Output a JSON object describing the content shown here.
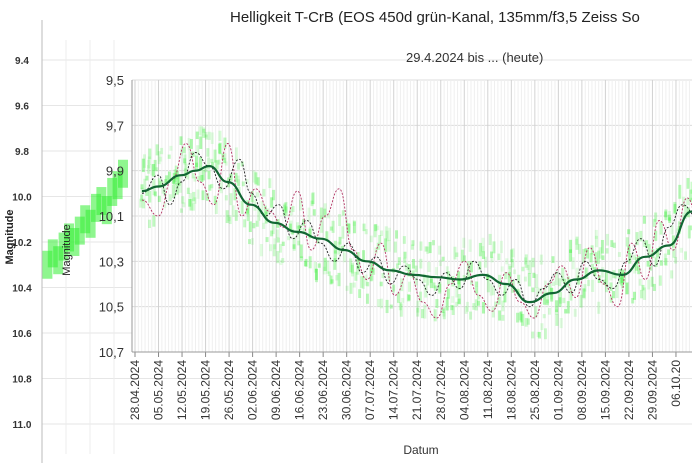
{
  "chart_data": [
    {
      "type": "scatter",
      "title": "",
      "ylabel": "Magnitude",
      "ylim": [
        9.3,
        11.1
      ],
      "y_inverted": true,
      "yticks": [
        "9.4",
        "9.6",
        "9.8",
        "10.0",
        "10.2",
        "10.4",
        "10.6",
        "10.8",
        "11.0"
      ],
      "grid": true,
      "series": [
        {
          "color": "#33ee33",
          "values": [
            [
              0.02,
              10.3
            ],
            [
              0.04,
              10.25
            ],
            [
              0.06,
              10.28
            ],
            [
              0.08,
              10.22
            ],
            [
              0.1,
              10.18
            ],
            [
              0.12,
              10.2
            ],
            [
              0.14,
              10.15
            ],
            [
              0.16,
              10.1
            ],
            [
              0.18,
              10.12
            ],
            [
              0.2,
              10.05
            ],
            [
              0.22,
              10.02
            ],
            [
              0.24,
              10.06
            ],
            [
              0.26,
              9.98
            ],
            [
              0.28,
              9.95
            ],
            [
              0.3,
              9.9
            ]
          ]
        }
      ]
    },
    {
      "type": "line",
      "title": "Helligkeit T-CrB (EOS 450d grün-Kanal, 135mm/f3,5 Zeiss So",
      "subtitle": "29.4.2024 bis ... (heute)",
      "xlabel": "Datum",
      "ylabel": "Magnitude",
      "ylim": [
        9.5,
        10.7
      ],
      "y_inverted": true,
      "yticks": [
        "9,5",
        "9,7",
        "9,9",
        "10,1",
        "10,3",
        "10,5",
        "10,7"
      ],
      "xticks": [
        "28.04.2024",
        "05.05.2024",
        "12.05.2024",
        "19.05.2024",
        "26.05.2024",
        "02.06.2024",
        "09.06.2024",
        "16.06.2024",
        "23.06.2024",
        "30.06.2024",
        "07.07.2024",
        "14.07.2024",
        "21.07.2024",
        "28.07.2024",
        "04.08.2024",
        "11.08.2024",
        "18.08.2024",
        "25.08.2024",
        "01.09.2024",
        "08.09.2024",
        "15.09.2024",
        "22.09.2024",
        "29.09.2024",
        "06.10.20"
      ],
      "grid": true,
      "series": [
        {
          "color": "#116633",
          "values": [
            [
              0.3,
              9.99
            ],
            [
              1,
              9.97
            ],
            [
              2,
              9.92
            ],
            [
              2.6,
              9.9
            ],
            [
              3.2,
              9.88
            ],
            [
              4,
              9.95
            ],
            [
              5,
              10.05
            ],
            [
              6,
              10.13
            ],
            [
              7,
              10.17
            ],
            [
              8,
              10.2
            ],
            [
              9,
              10.25
            ],
            [
              10,
              10.3
            ],
            [
              11,
              10.34
            ],
            [
              12,
              10.36
            ],
            [
              13,
              10.37
            ],
            [
              14,
              10.38
            ],
            [
              15,
              10.36
            ],
            [
              16,
              10.4
            ],
            [
              17,
              10.48
            ],
            [
              18,
              10.44
            ],
            [
              19,
              10.38
            ],
            [
              20,
              10.34
            ],
            [
              21,
              10.36
            ],
            [
              22,
              10.28
            ],
            [
              23,
              10.23
            ],
            [
              24,
              10.08
            ],
            [
              25,
              10.07
            ],
            [
              26,
              10.08
            ],
            [
              27,
              10.04
            ],
            [
              28,
              10.02
            ],
            [
              29,
              10.0
            ],
            [
              30,
              9.99
            ],
            [
              31,
              9.99
            ],
            [
              32,
              9.97
            ],
            [
              33,
              9.96
            ],
            [
              34,
              9.9
            ],
            [
              35,
              9.87
            ],
            [
              36,
              9.85
            ],
            [
              37,
              9.83
            ],
            [
              38,
              9.98
            ],
            [
              39,
              9.91
            ],
            [
              40,
              9.89
            ],
            [
              41,
              9.85
            ],
            [
              42,
              9.92
            ],
            [
              43,
              9.8
            ],
            [
              44,
              9.85
            ],
            [
              45,
              9.92
            ],
            [
              46,
              9.99
            ],
            [
              47,
              10.02
            ],
            [
              48,
              10.04
            ],
            [
              49,
              10.12
            ],
            [
              50,
              10.13
            ],
            [
              51,
              10.16
            ],
            [
              52,
              10.17
            ]
          ]
        },
        {
          "color": "#222222",
          "values": [
            [
              0.3,
              10.0
            ],
            [
              1,
              9.92
            ],
            [
              1.5,
              10.05
            ],
            [
              2,
              9.95
            ],
            [
              2.6,
              9.82
            ],
            [
              3.2,
              9.88
            ],
            [
              3.8,
              9.98
            ],
            [
              4.5,
              9.85
            ],
            [
              5,
              10.0
            ],
            [
              5.6,
              10.1
            ],
            [
              6.2,
              10.05
            ],
            [
              6.8,
              10.2
            ],
            [
              7.4,
              10.12
            ],
            [
              8,
              10.22
            ],
            [
              8.6,
              10.3
            ],
            [
              9.2,
              10.22
            ],
            [
              9.8,
              10.35
            ],
            [
              10.4,
              10.28
            ],
            [
              11,
              10.4
            ],
            [
              11.6,
              10.32
            ],
            [
              12.2,
              10.38
            ],
            [
              12.8,
              10.45
            ],
            [
              13.4,
              10.35
            ],
            [
              14,
              10.42
            ],
            [
              14.6,
              10.3
            ],
            [
              15.2,
              10.38
            ],
            [
              15.8,
              10.45
            ],
            [
              16.4,
              10.38
            ],
            [
              17,
              10.5
            ],
            [
              17.6,
              10.42
            ],
            [
              18.2,
              10.35
            ],
            [
              18.8,
              10.44
            ],
            [
              19.4,
              10.3
            ],
            [
              20,
              10.38
            ],
            [
              20.6,
              10.42
            ],
            [
              21.2,
              10.3
            ],
            [
              21.8,
              10.2
            ],
            [
              22.4,
              10.32
            ],
            [
              23,
              10.15
            ],
            [
              23.6,
              10.05
            ],
            [
              24.2,
              10.1
            ],
            [
              24.8,
              10.02
            ],
            [
              25.4,
              10.12
            ],
            [
              26,
              10.0
            ],
            [
              26.6,
              10.08
            ],
            [
              27.2,
              9.98
            ],
            [
              27.8,
              10.06
            ],
            [
              28.4,
              9.95
            ],
            [
              29,
              10.03
            ],
            [
              29.6,
              9.92
            ],
            [
              30.2,
              10.0
            ],
            [
              30.8,
              9.9
            ],
            [
              31.4,
              9.98
            ],
            [
              32,
              9.85
            ],
            [
              32.6,
              9.95
            ],
            [
              33.2,
              9.8
            ],
            [
              33.8,
              9.92
            ],
            [
              34.4,
              9.85
            ],
            [
              35,
              9.92
            ],
            [
              35.6,
              9.8
            ],
            [
              36.2,
              9.9
            ],
            [
              36.8,
              9.78
            ],
            [
              37.4,
              9.95
            ],
            [
              38,
              9.75
            ],
            [
              38.6,
              9.92
            ],
            [
              39.2,
              9.82
            ],
            [
              39.8,
              9.95
            ],
            [
              40.4,
              9.85
            ],
            [
              41,
              9.78
            ],
            [
              41.6,
              9.92
            ],
            [
              42.2,
              9.82
            ],
            [
              42.8,
              9.75
            ],
            [
              43.4,
              9.88
            ],
            [
              44,
              9.95
            ],
            [
              44.6,
              9.86
            ],
            [
              45.2,
              10.0
            ],
            [
              45.8,
              10.08
            ],
            [
              46.4,
              9.98
            ],
            [
              47,
              10.1
            ],
            [
              47.6,
              10.05
            ],
            [
              48.2,
              10.15
            ],
            [
              48.8,
              10.08
            ],
            [
              49.4,
              10.18
            ],
            [
              50,
              10.12
            ],
            [
              50.6,
              10.18
            ]
          ]
        },
        {
          "color": "#b03060",
          "values": [
            [
              0.3,
              10.03
            ],
            [
              1,
              10.1
            ],
            [
              1.6,
              9.94
            ],
            [
              2.2,
              9.78
            ],
            [
              2.8,
              9.95
            ],
            [
              3.4,
              10.05
            ],
            [
              4,
              9.78
            ],
            [
              4.6,
              10.1
            ],
            [
              5.2,
              9.98
            ],
            [
              5.8,
              10.08
            ],
            [
              6.4,
              10.15
            ],
            [
              7,
              9.99
            ],
            [
              7.6,
              10.25
            ],
            [
              8.2,
              10.1
            ],
            [
              8.8,
              9.98
            ],
            [
              9.4,
              10.25
            ],
            [
              10,
              10.38
            ],
            [
              10.6,
              10.22
            ],
            [
              11.2,
              10.45
            ],
            [
              11.8,
              10.35
            ],
            [
              12.4,
              10.48
            ],
            [
              13,
              10.55
            ],
            [
              13.6,
              10.4
            ],
            [
              14.2,
              10.3
            ],
            [
              14.8,
              10.45
            ],
            [
              15.4,
              10.52
            ],
            [
              16,
              10.35
            ],
            [
              16.6,
              10.48
            ],
            [
              17.2,
              10.55
            ],
            [
              17.8,
              10.4
            ],
            [
              18.4,
              10.32
            ],
            [
              19,
              10.46
            ],
            [
              19.6,
              10.24
            ],
            [
              20.2,
              10.4
            ],
            [
              20.8,
              10.5
            ],
            [
              21.4,
              10.22
            ],
            [
              22,
              10.38
            ],
            [
              22.6,
              10.12
            ],
            [
              23.2,
              10.25
            ],
            [
              23.8,
              10.02
            ],
            [
              24.4,
              10.18
            ],
            [
              25,
              10.06
            ],
            [
              25.6,
              10.2
            ],
            [
              26.2,
              9.97
            ],
            [
              26.8,
              10.14
            ],
            [
              27.4,
              10.4
            ],
            [
              28,
              9.9
            ],
            [
              28.6,
              10.05
            ],
            [
              29.2,
              9.95
            ],
            [
              29.8,
              10.1
            ],
            [
              30.4,
              9.88
            ],
            [
              31,
              10.06
            ],
            [
              31.6,
              9.8
            ],
            [
              32.2,
              9.98
            ],
            [
              32.8,
              9.6
            ],
            [
              33.4,
              10.0
            ],
            [
              34,
              9.78
            ],
            [
              34.6,
              9.92
            ],
            [
              35.2,
              9.82
            ],
            [
              35.8,
              9.98
            ],
            [
              36.4,
              9.75
            ],
            [
              37,
              9.92
            ],
            [
              37.6,
              9.65
            ],
            [
              38.2,
              9.98
            ],
            [
              38.8,
              9.75
            ],
            [
              39.4,
              9.92
            ],
            [
              40,
              9.6
            ],
            [
              40.6,
              9.94
            ],
            [
              41.2,
              9.74
            ],
            [
              41.8,
              10.05
            ],
            [
              42.4,
              9.7
            ],
            [
              43,
              9.9
            ],
            [
              43.6,
              10.0
            ],
            [
              44.2,
              9.72
            ],
            [
              44.8,
              10.1
            ],
            [
              45.4,
              9.98
            ],
            [
              46,
              10.16
            ],
            [
              46.6,
              10.05
            ],
            [
              47.2,
              10.22
            ],
            [
              47.8,
              10.1
            ],
            [
              48.4,
              10.2
            ],
            [
              49,
              10.26
            ],
            [
              49.6,
              10.14
            ],
            [
              50.2,
              10.23
            ],
            [
              50.8,
              10.28
            ]
          ]
        }
      ]
    }
  ]
}
